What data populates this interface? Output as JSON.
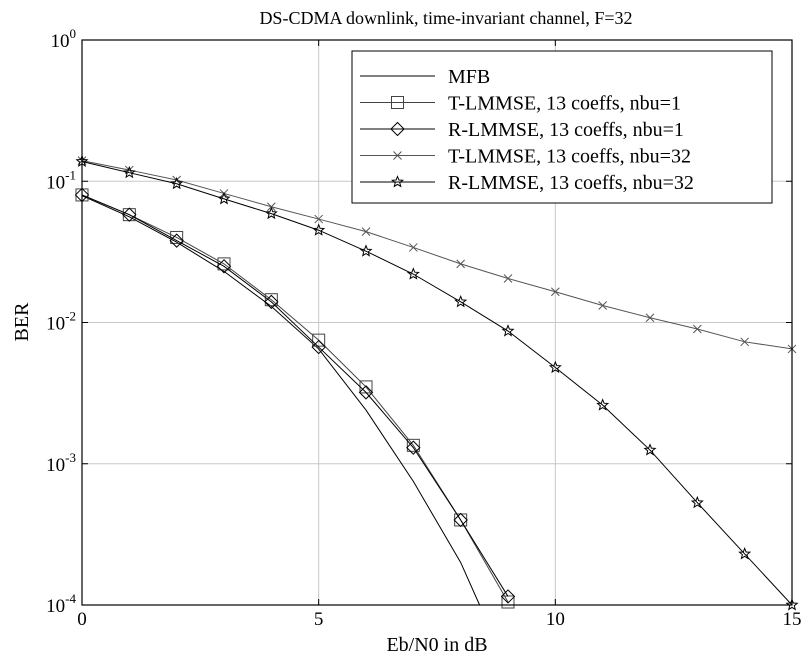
{
  "chart_data": {
    "type": "line",
    "title": "DS-CDMA downlink, time-invariant channel, F=32",
    "xlabel": "Eb/N0 in dB",
    "ylabel": "BER",
    "xlim": [
      0,
      15
    ],
    "ylim": [
      0.0001,
      1
    ],
    "yscale": "log",
    "grid": true,
    "legend_position": "top-right",
    "x_ticks": [
      0,
      5,
      10,
      15
    ],
    "y_ticks": [
      {
        "base": "10",
        "exp": "0",
        "value": 1
      },
      {
        "base": "10",
        "exp": "-1",
        "value": 0.1
      },
      {
        "base": "10",
        "exp": "-2",
        "value": 0.01
      },
      {
        "base": "10",
        "exp": "-3",
        "value": 0.001
      },
      {
        "base": "10",
        "exp": "-4",
        "value": 0.0001
      }
    ],
    "series": [
      {
        "name": "MFB",
        "marker": "none",
        "color": "#000000",
        "x": [
          0,
          1,
          2,
          3,
          4,
          5,
          6,
          7,
          8,
          8.4
        ],
        "y": [
          0.079,
          0.056,
          0.037,
          0.023,
          0.013,
          0.0065,
          0.0024,
          0.00075,
          0.0002,
          0.0001
        ]
      },
      {
        "name": "T-LMMSE, 13 coeffs, nbu=1",
        "marker": "square",
        "color": "#444444",
        "x": [
          0,
          1,
          2,
          3,
          4,
          5,
          6,
          7,
          8,
          9
        ],
        "y": [
          0.08,
          0.058,
          0.04,
          0.026,
          0.0145,
          0.0075,
          0.0035,
          0.00135,
          0.0004,
          0.000105
        ]
      },
      {
        "name": "R-LMMSE, 13 coeffs, nbu=1",
        "marker": "diamond",
        "color": "#000000",
        "x": [
          0,
          1,
          2,
          3,
          4,
          5,
          6,
          7,
          8,
          9
        ],
        "y": [
          0.08,
          0.058,
          0.038,
          0.025,
          0.014,
          0.0067,
          0.0032,
          0.0013,
          0.0004,
          0.000115
        ]
      },
      {
        "name": "T-LMMSE, 13 coeffs, nbu=32",
        "marker": "x",
        "color": "#555555",
        "x": [
          0,
          1,
          2,
          3,
          4,
          5,
          6,
          7,
          8,
          9,
          10,
          11,
          12,
          13,
          14,
          15
        ],
        "y": [
          0.14,
          0.12,
          0.102,
          0.082,
          0.066,
          0.054,
          0.044,
          0.034,
          0.026,
          0.0205,
          0.0165,
          0.0132,
          0.0108,
          0.009,
          0.0073,
          0.0065
        ]
      },
      {
        "name": "R-LMMSE, 13 coeffs, nbu=32",
        "marker": "star",
        "color": "#000000",
        "x": [
          0,
          1,
          2,
          3,
          4,
          5,
          6,
          7,
          8,
          9,
          10,
          11,
          12,
          13,
          14,
          15
        ],
        "y": [
          0.138,
          0.115,
          0.096,
          0.075,
          0.059,
          0.045,
          0.032,
          0.022,
          0.014,
          0.0087,
          0.0048,
          0.0026,
          0.00125,
          0.00053,
          0.00023,
          0.0001
        ]
      }
    ]
  }
}
